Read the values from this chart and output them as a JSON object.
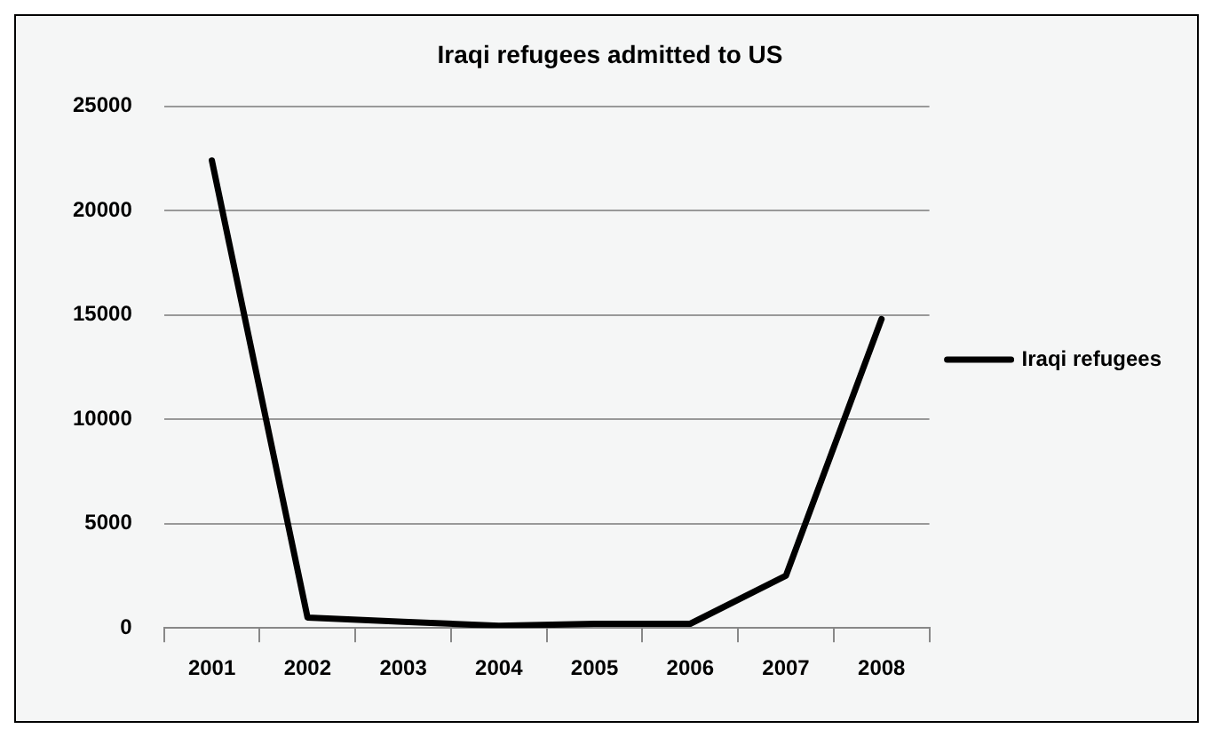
{
  "chart_data": {
    "type": "line",
    "title": "Iraqi refugees admitted to US",
    "categories": [
      "2001",
      "2002",
      "2003",
      "2004",
      "2005",
      "2006",
      "2007",
      "2008"
    ],
    "series": [
      {
        "name": "Iraqi refugees",
        "color": "#000000",
        "values": [
          22400,
          500,
          300,
          100,
          200,
          200,
          2500,
          14800
        ]
      }
    ],
    "ylim": [
      0,
      25000
    ],
    "yticks": [
      0,
      5000,
      10000,
      15000,
      20000,
      25000
    ],
    "grid": "y",
    "legend": "right",
    "marker": "none",
    "line_style": "solid"
  }
}
